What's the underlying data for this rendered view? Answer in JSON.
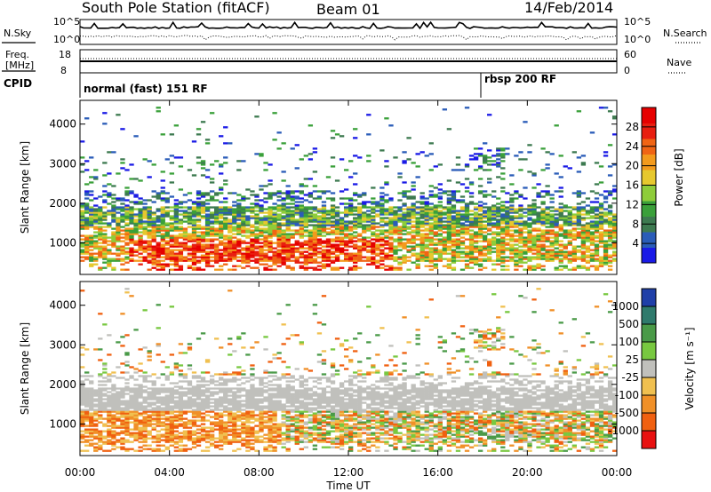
{
  "header": {
    "station": "South Pole Station (fitACF)",
    "beam": "Beam 01",
    "date": "14/Feb/2014"
  },
  "sky_panel": {
    "left_label": "N.Sky",
    "right_label": "N.Search",
    "left_ticks": [
      "10^5",
      "10^0"
    ],
    "right_ticks": [
      "10^5",
      "10^0"
    ]
  },
  "freq_panel": {
    "left_label_1": "Freq.",
    "left_label_2": "[MHz]",
    "left_ticks": [
      "18",
      "8"
    ],
    "right_label": "Nave",
    "right_ticks": [
      "60",
      "0"
    ]
  },
  "cpid_panel": {
    "label": "CPID",
    "mode1": "normal (fast) 151 RF",
    "mode2": "rbsp 200 RF"
  },
  "chart_data": [
    {
      "type": "heatmap",
      "name": "power",
      "ylabel": "Slant Range [km]",
      "ylim": [
        200,
        4600
      ],
      "yticks": [
        "1000",
        "2000",
        "3000",
        "4000"
      ],
      "xlim": [
        0,
        24
      ],
      "xticks": [
        "00:00",
        "04:00",
        "08:00",
        "12:00",
        "16:00",
        "20:00",
        "00:00"
      ],
      "colorbar_label": "Power [dB]",
      "colorbar_ticks": [
        "4",
        "8",
        "12",
        "16",
        "20",
        "24",
        "28"
      ],
      "colorbar_colors": [
        "#1a1ae6",
        "#2a5cb8",
        "#3d7a50",
        "#3aa03a",
        "#8ecc3a",
        "#e6c82e",
        "#f39a1c",
        "#f06414",
        "#e81e10",
        "#e60000"
      ]
    },
    {
      "type": "heatmap",
      "name": "velocity",
      "ylabel": "Slant Range [km]",
      "ylim": [
        200,
        4600
      ],
      "yticks": [
        "1000",
        "2000",
        "3000",
        "4000"
      ],
      "xlim": [
        0,
        24
      ],
      "xticks": [
        "00:00",
        "04:00",
        "08:00",
        "12:00",
        "16:00",
        "20:00",
        "00:00"
      ],
      "xlabel": "Time UT",
      "colorbar_label": "Velocity [m s⁻¹]",
      "colorbar_ticks": [
        "1000",
        "500",
        "100",
        "25",
        "-25",
        "-100",
        "-500",
        "-1000"
      ],
      "colorbar_colors": [
        "#1f3fa8",
        "#2f7a6c",
        "#4a9a48",
        "#78c840",
        "#c0c0bc",
        "#f0c050",
        "#f09028",
        "#f06010",
        "#e81010"
      ]
    }
  ]
}
